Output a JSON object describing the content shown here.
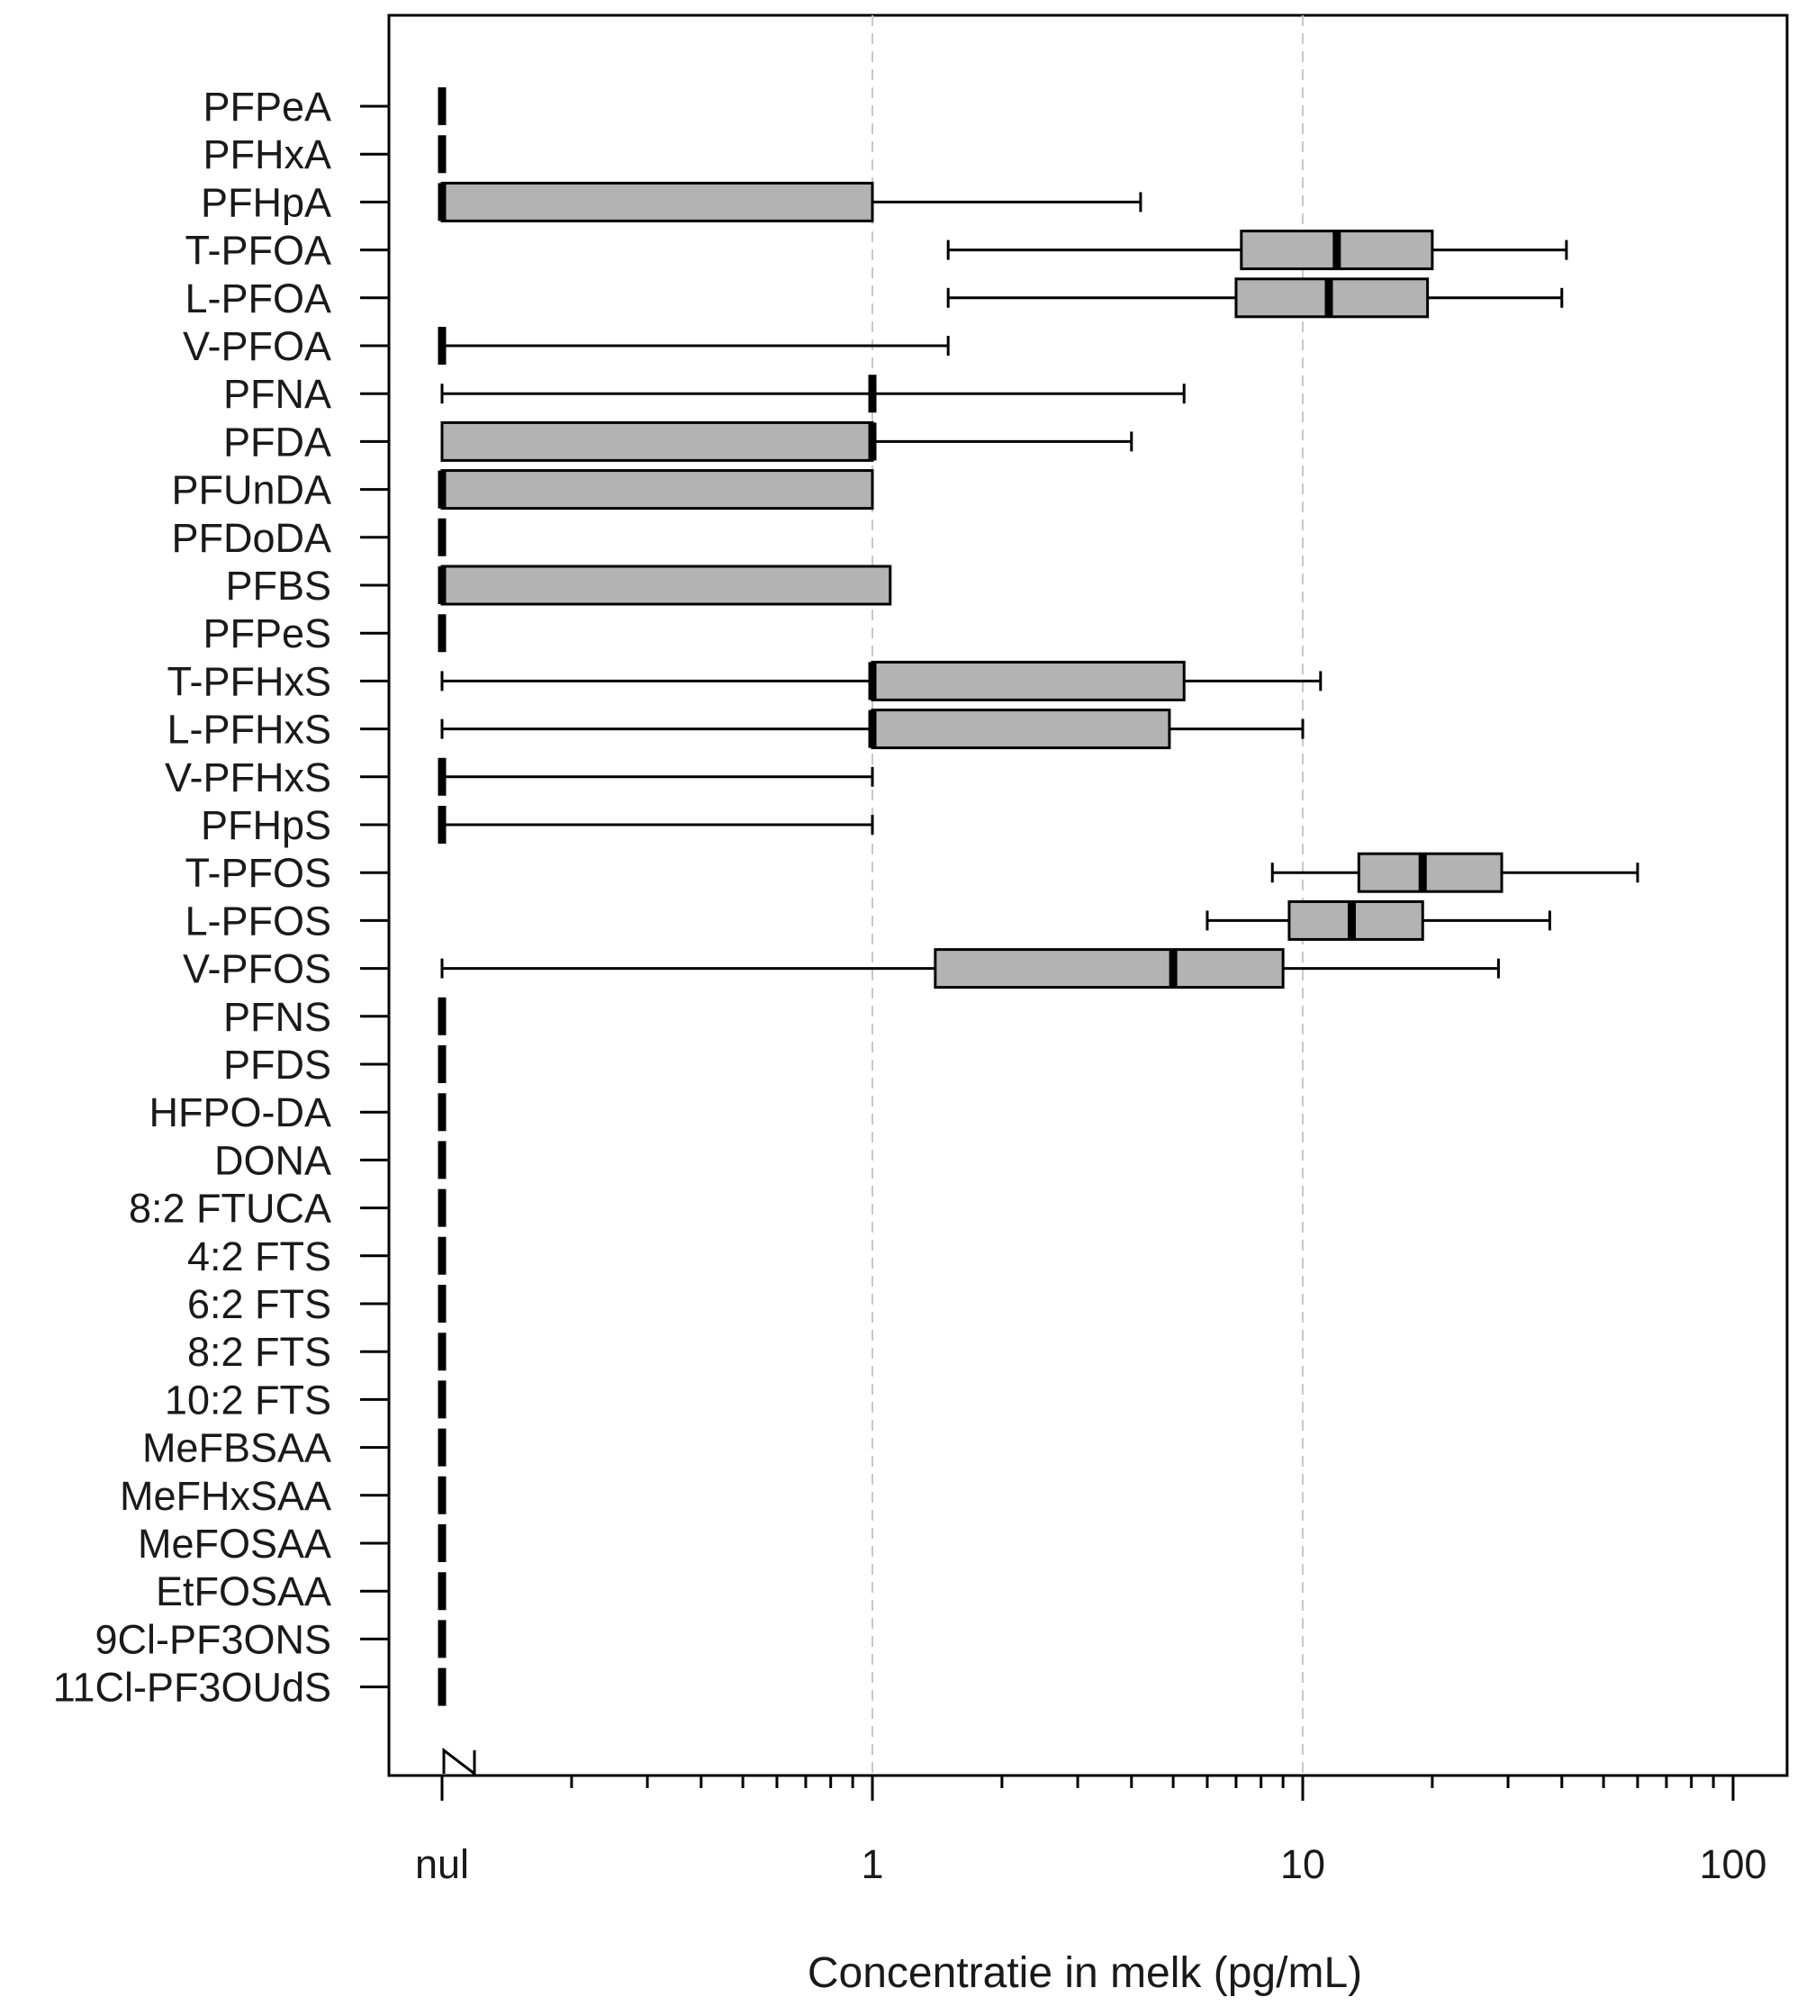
{
  "colors": {
    "box_fill": "#b3b3b3",
    "stroke": "#000000",
    "gridline": "#c8c8c8",
    "text": "#1a1a1a"
  },
  "chart_data": {
    "type": "boxplot",
    "orientation": "horizontal",
    "title": "",
    "xlabel": "Concentratie in melk (pg/mL)",
    "ylabel": "",
    "x_scale": "log",
    "xlim": [
      0.1,
      130
    ],
    "x_axis_break_near_zero": true,
    "tick_labels": [
      {
        "value": 0.1,
        "label": "nul"
      },
      {
        "value": 1,
        "label": "1"
      },
      {
        "value": 10,
        "label": "10"
      },
      {
        "value": 100,
        "label": "100"
      }
    ],
    "gridlines_at": [
      1,
      10
    ],
    "grid": "vertical dashed at 1 and 10",
    "categories": [
      "PFPeA",
      "PFHxA",
      "PFHpA",
      "T-PFOA",
      "L-PFOA",
      "V-PFOA",
      "PFNA",
      "PFDA",
      "PFUnDA",
      "PFDoDA",
      "PFBS",
      "PFPeS",
      "T-PFHxS",
      "L-PFHxS",
      "V-PFHxS",
      "PFHpS",
      "T-PFOS",
      "L-PFOS",
      "V-PFOS",
      "PFNS",
      "PFDS",
      "HFPO-DA",
      "DONA",
      "8:2 FTUCA",
      "4:2 FTS",
      "6:2 FTS",
      "8:2 FTS",
      "10:2 FTS",
      "MeFBSAA",
      "MeFHxSAA",
      "MeFOSAA",
      "EtFOSAA",
      "9Cl-PF3ONS",
      "11Cl-PF3OUdS"
    ],
    "boxes": [
      {
        "min": 0.1,
        "q1": 0.1,
        "median": 0.1,
        "q3": 0.1,
        "max": 0.1
      },
      {
        "min": 0.1,
        "q1": 0.1,
        "median": 0.1,
        "q3": 0.1,
        "max": 0.1
      },
      {
        "min": 0.1,
        "q1": 0.1,
        "median": 0.1,
        "q3": 1.0,
        "max": 4.2
      },
      {
        "min": 1.5,
        "q1": 7.2,
        "median": 12.0,
        "q3": 20.0,
        "max": 41.0
      },
      {
        "min": 1.5,
        "q1": 7.0,
        "median": 11.5,
        "q3": 19.5,
        "max": 40.0
      },
      {
        "min": 0.1,
        "q1": 0.1,
        "median": 0.1,
        "q3": 0.1,
        "max": 1.5
      },
      {
        "min": 0.1,
        "q1": 1.0,
        "median": 1.0,
        "q3": 1.0,
        "max": 5.3
      },
      {
        "min": 0.1,
        "q1": 0.1,
        "median": 1.0,
        "q3": 1.0,
        "max": 4.0
      },
      {
        "min": 0.1,
        "q1": 0.1,
        "median": 0.1,
        "q3": 1.0,
        "max": 1.0
      },
      {
        "min": 0.1,
        "q1": 0.1,
        "median": 0.1,
        "q3": 0.1,
        "max": 0.1
      },
      {
        "min": 0.1,
        "q1": 0.1,
        "median": 0.1,
        "q3": 1.1,
        "max": 1.1
      },
      {
        "min": 0.1,
        "q1": 0.1,
        "median": 0.1,
        "q3": 0.1,
        "max": 0.1
      },
      {
        "min": 0.1,
        "q1": 1.0,
        "median": 1.0,
        "q3": 5.3,
        "max": 11.0
      },
      {
        "min": 0.1,
        "q1": 1.0,
        "median": 1.0,
        "q3": 4.9,
        "max": 10.0
      },
      {
        "min": 0.1,
        "q1": 0.1,
        "median": 0.1,
        "q3": 0.1,
        "max": 1.0
      },
      {
        "min": 0.1,
        "q1": 0.1,
        "median": 0.1,
        "q3": 0.1,
        "max": 1.0
      },
      {
        "min": 8.5,
        "q1": 13.5,
        "median": 19.0,
        "q3": 29.0,
        "max": 60.0
      },
      {
        "min": 6.0,
        "q1": 9.3,
        "median": 13.0,
        "q3": 19.0,
        "max": 37.5
      },
      {
        "min": 0.1,
        "q1": 1.4,
        "median": 5.0,
        "q3": 9.0,
        "max": 28.5
      },
      {
        "min": 0.1,
        "q1": 0.1,
        "median": 0.1,
        "q3": 0.1,
        "max": 0.1
      },
      {
        "min": 0.1,
        "q1": 0.1,
        "median": 0.1,
        "q3": 0.1,
        "max": 0.1
      },
      {
        "min": 0.1,
        "q1": 0.1,
        "median": 0.1,
        "q3": 0.1,
        "max": 0.1
      },
      {
        "min": 0.1,
        "q1": 0.1,
        "median": 0.1,
        "q3": 0.1,
        "max": 0.1
      },
      {
        "min": 0.1,
        "q1": 0.1,
        "median": 0.1,
        "q3": 0.1,
        "max": 0.1
      },
      {
        "min": 0.1,
        "q1": 0.1,
        "median": 0.1,
        "q3": 0.1,
        "max": 0.1
      },
      {
        "min": 0.1,
        "q1": 0.1,
        "median": 0.1,
        "q3": 0.1,
        "max": 0.1
      },
      {
        "min": 0.1,
        "q1": 0.1,
        "median": 0.1,
        "q3": 0.1,
        "max": 0.1
      },
      {
        "min": 0.1,
        "q1": 0.1,
        "median": 0.1,
        "q3": 0.1,
        "max": 0.1
      },
      {
        "min": 0.1,
        "q1": 0.1,
        "median": 0.1,
        "q3": 0.1,
        "max": 0.1
      },
      {
        "min": 0.1,
        "q1": 0.1,
        "median": 0.1,
        "q3": 0.1,
        "max": 0.1
      },
      {
        "min": 0.1,
        "q1": 0.1,
        "median": 0.1,
        "q3": 0.1,
        "max": 0.1
      },
      {
        "min": 0.1,
        "q1": 0.1,
        "median": 0.1,
        "q3": 0.1,
        "max": 0.1
      },
      {
        "min": 0.1,
        "q1": 0.1,
        "median": 0.1,
        "q3": 0.1,
        "max": 0.1
      },
      {
        "min": 0.1,
        "q1": 0.1,
        "median": 0.1,
        "q3": 0.1,
        "max": 0.1
      }
    ]
  }
}
